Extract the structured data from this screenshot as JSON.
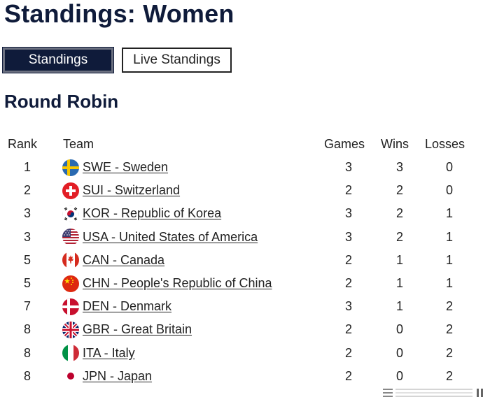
{
  "page": {
    "title": "Standings: Women",
    "section": "Round Robin"
  },
  "tabs": {
    "standings": "Standings",
    "live": "Live Standings"
  },
  "table": {
    "headers": {
      "rank": "Rank",
      "team": "Team",
      "games": "Games",
      "wins": "Wins",
      "losses": "Losses"
    },
    "rows": [
      {
        "rank": "1",
        "team": "SWE - Sweden",
        "flag": "sweden-flag-icon",
        "games": "3",
        "wins": "3",
        "losses": "0"
      },
      {
        "rank": "2",
        "team": "SUI - Switzerland",
        "flag": "switzerland-flag-icon",
        "games": "2",
        "wins": "2",
        "losses": "0"
      },
      {
        "rank": "3",
        "team": "KOR - Republic of Korea",
        "flag": "korea-flag-icon",
        "games": "3",
        "wins": "2",
        "losses": "1"
      },
      {
        "rank": "3",
        "team": "USA - United States of America",
        "flag": "usa-flag-icon",
        "games": "3",
        "wins": "2",
        "losses": "1"
      },
      {
        "rank": "5",
        "team": "CAN - Canada",
        "flag": "canada-flag-icon",
        "games": "2",
        "wins": "1",
        "losses": "1"
      },
      {
        "rank": "5",
        "team": "CHN - People's Republic of China",
        "flag": "china-flag-icon",
        "games": "2",
        "wins": "1",
        "losses": "1"
      },
      {
        "rank": "7",
        "team": "DEN - Denmark",
        "flag": "denmark-flag-icon",
        "games": "3",
        "wins": "1",
        "losses": "2"
      },
      {
        "rank": "8",
        "team": "GBR - Great Britain",
        "flag": "great-britain-flag-icon",
        "games": "2",
        "wins": "0",
        "losses": "2"
      },
      {
        "rank": "8",
        "team": "ITA - Italy",
        "flag": "italy-flag-icon",
        "games": "2",
        "wins": "0",
        "losses": "2"
      },
      {
        "rank": "8",
        "team": "JPN - Japan",
        "flag": "japan-flag-icon",
        "games": "2",
        "wins": "0",
        "losses": "2"
      }
    ]
  },
  "colors": {
    "navy": "#0f1b3a"
  }
}
